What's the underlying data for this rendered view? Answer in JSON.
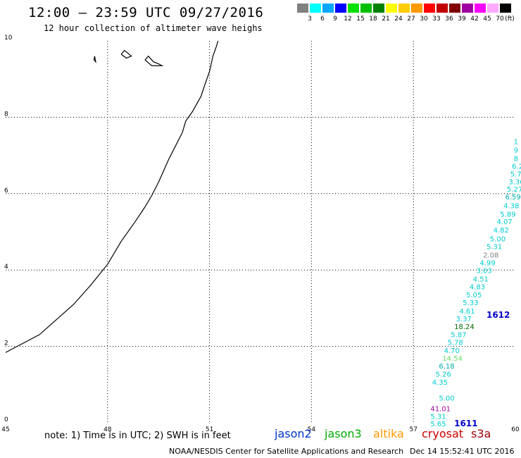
{
  "header": {
    "title": "12:00 – 23:59 UTC 09/27/2016",
    "subtitle": "12 hour collection of altimeter wave heighs"
  },
  "legend": {
    "unit": "(ft)",
    "bins": [
      {
        "color": "#808080",
        "label": "3"
      },
      {
        "color": "#00ffff",
        "label": "6"
      },
      {
        "color": "#00a6ff",
        "label": "9"
      },
      {
        "color": "#0000ff",
        "label": "12"
      },
      {
        "color": "#00e000",
        "label": "15"
      },
      {
        "color": "#00c000",
        "label": "18"
      },
      {
        "color": "#008000",
        "label": "21"
      },
      {
        "color": "#ffff00",
        "label": "24"
      },
      {
        "color": "#ffcc00",
        "label": "27"
      },
      {
        "color": "#ff9900",
        "label": "30"
      },
      {
        "color": "#ff0000",
        "label": "33"
      },
      {
        "color": "#c00000",
        "label": "36"
      },
      {
        "color": "#800000",
        "label": "39"
      },
      {
        "color": "#a000a0",
        "label": "42"
      },
      {
        "color": "#ff00ff",
        "label": "45"
      },
      {
        "color": "#ffaaff",
        "label": "70"
      },
      {
        "color": "#000000",
        "label": ""
      }
    ]
  },
  "axes": {
    "x_ticks": [
      "45",
      "48",
      "51",
      "54",
      "57",
      "60"
    ],
    "y_ticks": [
      "0",
      "2",
      "4",
      "6",
      "8",
      "10"
    ],
    "lon_range": [
      45,
      60
    ],
    "lat_range": [
      0,
      10
    ]
  },
  "coastline": [
    [
      45.0,
      1.84
    ],
    [
      46.0,
      2.31
    ],
    [
      47.0,
      3.1
    ],
    [
      47.5,
      3.6
    ],
    [
      48.0,
      4.15
    ],
    [
      48.4,
      4.75
    ],
    [
      48.8,
      5.25
    ],
    [
      49.1,
      5.65
    ],
    [
      49.3,
      5.95
    ],
    [
      49.5,
      6.3
    ],
    [
      49.8,
      6.9
    ],
    [
      50.0,
      7.25
    ],
    [
      50.2,
      7.6
    ],
    [
      50.3,
      7.9
    ],
    [
      50.5,
      8.15
    ],
    [
      50.75,
      8.55
    ],
    [
      50.9,
      8.95
    ],
    [
      51.0,
      9.2
    ],
    [
      51.1,
      9.6
    ],
    [
      51.2,
      9.85
    ],
    [
      51.25,
      10.0
    ]
  ],
  "islands": [
    {
      "name": "island-1",
      "pts": [
        [
          47.6,
          9.5
        ],
        [
          47.62,
          9.6
        ],
        [
          47.65,
          9.45
        ],
        [
          47.6,
          9.5
        ]
      ]
    },
    {
      "name": "island-2",
      "pts": [
        [
          48.4,
          9.65
        ],
        [
          48.5,
          9.75
        ],
        [
          48.7,
          9.6
        ],
        [
          48.55,
          9.55
        ],
        [
          48.4,
          9.65
        ]
      ]
    },
    {
      "name": "island-3",
      "pts": [
        [
          49.1,
          9.5
        ],
        [
          49.2,
          9.6
        ],
        [
          49.35,
          9.45
        ],
        [
          49.5,
          9.4
        ],
        [
          49.6,
          9.35
        ],
        [
          49.3,
          9.35
        ],
        [
          49.1,
          9.5
        ]
      ]
    }
  ],
  "wave_values": [
    {
      "t": "1",
      "c": "#00cccc",
      "lon": 59.95,
      "lat": 7.3
    },
    {
      "t": "9",
      "c": "#00cccc",
      "lon": 59.95,
      "lat": 7.08
    },
    {
      "t": "8",
      "c": "#00cccc",
      "lon": 59.95,
      "lat": 6.85
    },
    {
      "t": "6.2",
      "c": "#00cccc",
      "lon": 59.9,
      "lat": 6.65
    },
    {
      "t": "5.7",
      "c": "#00cccc",
      "lon": 59.85,
      "lat": 6.45
    },
    {
      "t": "3.36",
      "c": "#00cccc",
      "lon": 59.8,
      "lat": 6.25
    },
    {
      "t": "5.27",
      "c": "#00cccc",
      "lon": 59.75,
      "lat": 6.05
    },
    {
      "t": "6.59",
      "c": "#00aaaa",
      "lon": 59.7,
      "lat": 5.85
    },
    {
      "t": "4.38",
      "c": "#00cccc",
      "lon": 59.65,
      "lat": 5.62
    },
    {
      "t": "5.89",
      "c": "#00cccc",
      "lon": 59.55,
      "lat": 5.4
    },
    {
      "t": "4.07",
      "c": "#00cccc",
      "lon": 59.45,
      "lat": 5.2
    },
    {
      "t": "4.82",
      "c": "#00cccc",
      "lon": 59.35,
      "lat": 4.98
    },
    {
      "t": "5.00",
      "c": "#00cccc",
      "lon": 59.25,
      "lat": 4.75
    },
    {
      "t": "5.31",
      "c": "#00cccc",
      "lon": 59.15,
      "lat": 4.55
    },
    {
      "t": "2.08",
      "c": "#808080",
      "lon": 59.05,
      "lat": 4.33
    },
    {
      "t": "4.99",
      "c": "#00cccc",
      "lon": 58.95,
      "lat": 4.12
    },
    {
      "t": "3.03",
      "c": "#00cccc",
      "lon": 58.85,
      "lat": 3.92
    },
    {
      "t": "4.51",
      "c": "#00cccc",
      "lon": 58.75,
      "lat": 3.7
    },
    {
      "t": "4.83",
      "c": "#00cccc",
      "lon": 58.65,
      "lat": 3.5
    },
    {
      "t": "5.05",
      "c": "#00cccc",
      "lon": 58.55,
      "lat": 3.28
    },
    {
      "t": "5.33",
      "c": "#00cccc",
      "lon": 58.45,
      "lat": 3.08
    },
    {
      "t": "4.61",
      "c": "#00cccc",
      "lon": 58.35,
      "lat": 2.86
    },
    {
      "t": "3.37",
      "c": "#00cccc",
      "lon": 58.25,
      "lat": 2.66
    },
    {
      "t": "18.24",
      "c": "#006600",
      "lon": 58.2,
      "lat": 2.45
    },
    {
      "t": "5.87",
      "c": "#00cccc",
      "lon": 58.1,
      "lat": 2.24
    },
    {
      "t": "5.78",
      "c": "#00cccc",
      "lon": 58.0,
      "lat": 2.04
    },
    {
      "t": "4.70",
      "c": "#00cccc",
      "lon": 57.9,
      "lat": 1.83
    },
    {
      "t": "14.54",
      "c": "#66dd66",
      "lon": 57.85,
      "lat": 1.62
    },
    {
      "t": "6.18",
      "c": "#00aaaa",
      "lon": 57.75,
      "lat": 1.42
    },
    {
      "t": "5.26",
      "c": "#00cccc",
      "lon": 57.65,
      "lat": 1.21
    },
    {
      "t": "4.35",
      "c": "#00cccc",
      "lon": 57.55,
      "lat": 1.0
    },
    {
      "t": "5.00",
      "c": "#00cccc",
      "lon": 57.75,
      "lat": 0.58
    },
    {
      "t": "41.01",
      "c": "#990099",
      "lon": 57.5,
      "lat": 0.3
    },
    {
      "t": "5.31",
      "c": "#00cccc",
      "lon": 57.5,
      "lat": 0.1
    },
    {
      "t": "5.65",
      "c": "#00cccc",
      "lon": 57.5,
      "lat": -0.09
    }
  ],
  "pass_labels": [
    {
      "t": "1612",
      "c": "#0000cc",
      "lon": 59.15,
      "lat": 2.75
    },
    {
      "t": "1611",
      "c": "#0000cc",
      "lon": 58.2,
      "lat": -0.09
    }
  ],
  "note": "note: 1) Time is in UTC; 2) SWH is in feet",
  "satellites": [
    {
      "name": "jason2",
      "color": "#0033cc"
    },
    {
      "name": "jason3",
      "color": "#00aa00"
    },
    {
      "name": "altika",
      "color": "#ff9900"
    },
    {
      "name": "cryosat",
      "color": "#cc0000"
    },
    {
      "name": "s3a",
      "color": "#990000"
    }
  ],
  "footer": "NOAA/NESDIS Center for Satellite Applications and Research",
  "footer_time": "Dec 14 15:52:41 UTC 2016"
}
